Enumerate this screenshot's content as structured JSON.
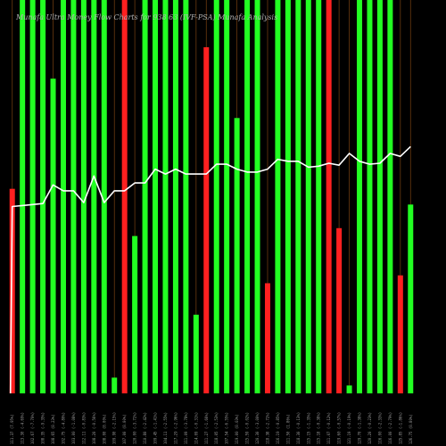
{
  "chart_data": {
    "type": "bar",
    "title": "Munafa Ultra Money Flow Charts for 938 63 (IVF-PSA) Munafa Analysis",
    "title_parts": [
      "Munafa",
      "ultra",
      "Money",
      "Flow",
      "Charts for",
      "938",
      "63",
      "(IVF-PSA)",
      "Munafa",
      "analysis"
    ],
    "ylim": [
      0,
      100
    ],
    "grid": false,
    "categories": [
      "Thu 02 Jan 2025",
      "Wed 01 Jan 2025",
      "Tue 31 Dec 2024",
      "Mon 30 Dec 2024",
      "Fri 27 Dec 2024",
      "Thu 26 Dec 2024",
      "Tue 24 Dec 2024",
      "Mon 23 Dec 2024",
      "Fri 20 Dec 2024",
      "Thu 19 Dec 2024",
      "Wed 18 Dec 2024",
      "Tue 17 Dec 2024",
      "Mon 16 Dec 2024",
      "Fri 13 Dec 2024",
      "Thu 12 Dec 2024",
      "Wed 11 Dec 2024",
      "Tue 10 Dec 2024",
      "Mon 09 Dec 2024",
      "Fri 06 Dec 2024",
      "Thu 05 Dec 2024",
      "Wed 04 Dec 2024",
      "Tue 03 Dec 2024",
      "Mon 02 Dec 2024",
      "Fri 29 Nov 2024",
      "Thu 28 Nov 2024",
      "Wed 27 Nov 2024",
      "Tue 26 Nov 2024",
      "Mon 25 Nov 2024",
      "Fri 22 Nov 2024",
      "Thu 21 Nov 2024",
      "Wed 20 Nov 2024",
      "Tue 19 Nov 2024",
      "Mon 18 Nov 2024",
      "Fri 15 Nov 2024",
      "Thu 14 Nov 2024",
      "Wed 13 Nov 2024",
      "Tue 12 Nov 2024",
      "Mon 11 Nov 2024",
      "Fri 08 Nov 2024",
      "Thu 07 Nov 2024"
    ],
    "xtick_labels": [
      "111.37 (7.95%)",
      "113.30 (-4.69%)",
      "102.67 (-7.70%)",
      "108.35 (-9.35%)",
      "108.65 (0.23%)",
      "102.75 (-4.80%)",
      "103.00 (-1.08%)",
      "112.11 (-0.83%)",
      "108.20 (-0.56%)",
      "108.00 (0.00%)",
      "109.90 (-2.15%)",
      "107.00 (0.00%)",
      "120.00 (-3.72%)",
      "110.80 (-2.42%)",
      "109.45 (-1.41%)",
      "104.11 (-2.55%)",
      "117.29 (-2.96%)",
      "111.09 (-3.78%)",
      "114.09 (-0.31%)",
      "111.27 (-1.66%)",
      "118.05 (-2.53%)",
      "107.54 (-6.55%)",
      "119.00 (0.03%)",
      "115.59 (-0.02%)",
      "120.30 (-3.00%)",
      "118.38 (-2.72%)",
      "116.19 (-0.85%)",
      "111.50 (1.86%)",
      "118.30 (-0.13%)",
      "115.15 (-1.35%)",
      "115.18 (-0.38%)",
      "111.07 (-0.12%)",
      "119.60 (-0.57%)",
      "121.19 (-0.19%)",
      "129.70 (-1.38%)",
      "120.20 (-0.23%)",
      "116.00 (-2.33%)",
      "116.00 (-2.79%)",
      "125.85 (-1.86%)",
      "126.75 (0.80%)"
    ],
    "series": [
      {
        "kind": "bar",
        "values": [
          52,
          100,
          100,
          100,
          80,
          100,
          100,
          100,
          100,
          100,
          4,
          100,
          40,
          100,
          100,
          100,
          100,
          100,
          20,
          88,
          100,
          100,
          70,
          100,
          100,
          28,
          100,
          100,
          100,
          100,
          100,
          100,
          42,
          2,
          100,
          100,
          100,
          100,
          30,
          48
        ],
        "colors": [
          "#ff2020",
          "#22ff22",
          "#22ff22",
          "#22ff22",
          "#22ff22",
          "#22ff22",
          "#22ff22",
          "#22ff22",
          "#22ff22",
          "#22ff22",
          "#22ff22",
          "#ff2020",
          "#22ff22",
          "#22ff22",
          "#22ff22",
          "#22ff22",
          "#22ff22",
          "#22ff22",
          "#22ff22",
          "#ff2020",
          "#22ff22",
          "#22ff22",
          "#22ff22",
          "#22ff22",
          "#22ff22",
          "#ff2020",
          "#22ff22",
          "#22ff22",
          "#22ff22",
          "#22ff22",
          "#22ff22",
          "#ff2020",
          "#ff2020",
          "#22ff22",
          "#22ff22",
          "#22ff22",
          "#22ff22",
          "#22ff22",
          "#ff2020",
          "#22ff22"
        ]
      },
      {
        "kind": "line",
        "color": "#ffffff",
        "values": [
          47.5,
          47.75,
          48,
          48.25,
          53,
          51.5,
          51.5,
          48.5,
          55.25,
          48.5,
          51.5,
          51.5,
          53.5,
          53.5,
          57,
          55.75,
          57,
          55.75,
          55.75,
          55.75,
          58.25,
          58.25,
          57,
          56.25,
          56.25,
          57,
          59.5,
          59,
          59,
          57.5,
          57.75,
          58.5,
          58,
          61,
          59,
          58.25,
          58.5,
          61,
          60.25,
          62.75
        ]
      }
    ]
  },
  "colors": {
    "background": "#000000",
    "bullish": "#22ff22",
    "bearish": "#ff2020",
    "divider": "#6b3a10",
    "line": "#ffffff"
  }
}
